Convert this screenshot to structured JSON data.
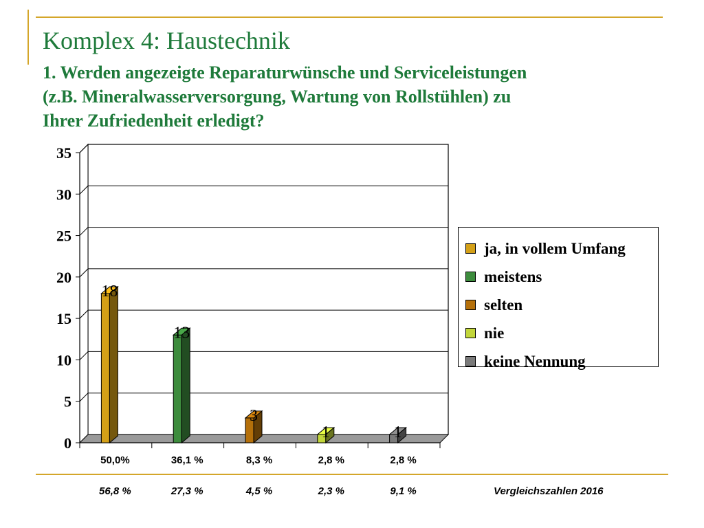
{
  "header": {
    "title": "Komplex 4: Haustechnik",
    "subtitle_lines": [
      "1. Werden angezeigte Reparaturwünsche und Serviceleistungen",
      "(z.B. Mineralwasserversorgung, Wartung von Rollstühlen) zu",
      "Ihrer Zufriedenheit erledigt?"
    ]
  },
  "chart_data": {
    "type": "bar",
    "style": "3d",
    "title": "",
    "xlabel": "",
    "ylabel": "",
    "ylim": [
      0,
      35
    ],
    "yticks": [
      0,
      5,
      10,
      15,
      20,
      25,
      30,
      35
    ],
    "grid": true,
    "legend_position": "right",
    "categories": [
      "50,0%",
      "36,1 %",
      "8,3 %",
      "2,8 %",
      "2,8 %"
    ],
    "series": [
      {
        "name": "ja, in vollem Umfang",
        "value": 18,
        "label": "18",
        "color": "#d4a017"
      },
      {
        "name": "meistens",
        "value": 13,
        "label": "13",
        "color": "#3d8c3d"
      },
      {
        "name": "selten",
        "value": 3,
        "label": "3",
        "color": "#b5700a"
      },
      {
        "name": "nie",
        "value": 1,
        "label": "1",
        "color": "#c2d63a"
      },
      {
        "name": "keine Nennung",
        "value": 1,
        "label": "1",
        "color": "#7a7a7a"
      }
    ]
  },
  "comparison": {
    "label": "Vergleichszahlen 2016",
    "values": [
      "56,8 %",
      "27,3 %",
      "4,5 %",
      "2,3 %",
      "9,1 %"
    ]
  }
}
